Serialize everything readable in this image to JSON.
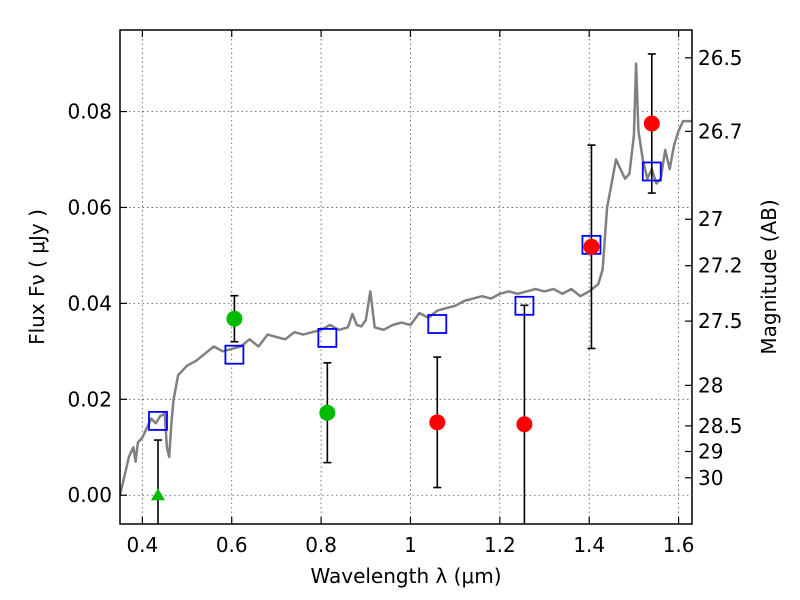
{
  "chart_data": {
    "type": "scatter",
    "xlabel": "Wavelength  λ (μm)",
    "ylabel": "Flux  Fν  ( μJy )",
    "y2label": "Magnitude (AB)",
    "xlim": [
      0.35,
      1.63
    ],
    "ylim": [
      -0.006,
      0.097
    ],
    "grid": true,
    "x_ticks": [
      0.4,
      0.6,
      0.8,
      1.0,
      1.2,
      1.4,
      1.6
    ],
    "x_tick_labels": [
      "0.4",
      "0.6",
      "0.8",
      "1",
      "1.2",
      "1.4",
      "1.6"
    ],
    "y_ticks": [
      0.0,
      0.02,
      0.04,
      0.06,
      0.08
    ],
    "y_tick_labels": [
      "0.00",
      "0.02",
      "0.04",
      "0.06",
      "0.08"
    ],
    "y2_ticks": [
      {
        "mag": 26.5,
        "label": "26.5"
      },
      {
        "mag": 26.7,
        "label": "26.7"
      },
      {
        "mag": 27.0,
        "label": "27"
      },
      {
        "mag": 27.2,
        "label": "27.2"
      },
      {
        "mag": 27.5,
        "label": "27.5"
      },
      {
        "mag": 28.0,
        "label": "28"
      },
      {
        "mag": 28.5,
        "label": "28.5"
      },
      {
        "mag": 29.0,
        "label": "29"
      },
      {
        "mag": 30.0,
        "label": "30"
      }
    ],
    "colors": {
      "sed": "#808080",
      "model": "#0000ff",
      "detection": "#ff0000",
      "weak": "#00bb00",
      "errorbar": "#000000"
    },
    "observed": [
      {
        "x": 0.435,
        "y": 0.0,
        "err": 0.0115,
        "marker": "triangle",
        "color": "green"
      },
      {
        "x": 0.606,
        "y": 0.0368,
        "err": 0.0048,
        "marker": "circle",
        "color": "green"
      },
      {
        "x": 0.814,
        "y": 0.0172,
        "err": 0.0104,
        "marker": "circle",
        "color": "green"
      },
      {
        "x": 1.06,
        "y": 0.0152,
        "err": 0.0136,
        "marker": "circle",
        "color": "red"
      },
      {
        "x": 1.255,
        "y": 0.0148,
        "err": 0.0248,
        "marker": "circle",
        "color": "red"
      },
      {
        "x": 1.405,
        "y": 0.0518,
        "err": 0.0212,
        "marker": "circle",
        "color": "red"
      },
      {
        "x": 1.54,
        "y": 0.0775,
        "err": 0.0145,
        "marker": "circle",
        "color": "red"
      }
    ],
    "model_points": [
      {
        "x": 0.435,
        "y": 0.0155
      },
      {
        "x": 0.606,
        "y": 0.0293
      },
      {
        "x": 0.814,
        "y": 0.0328
      },
      {
        "x": 1.06,
        "y": 0.0357
      },
      {
        "x": 1.255,
        "y": 0.0395
      },
      {
        "x": 1.405,
        "y": 0.0522
      },
      {
        "x": 1.54,
        "y": 0.0675
      }
    ],
    "sed_curve": [
      [
        0.35,
        0.0
      ],
      [
        0.36,
        0.004
      ],
      [
        0.37,
        0.008
      ],
      [
        0.38,
        0.01
      ],
      [
        0.385,
        0.007
      ],
      [
        0.39,
        0.011
      ],
      [
        0.4,
        0.012
      ],
      [
        0.41,
        0.014
      ],
      [
        0.42,
        0.016
      ],
      [
        0.43,
        0.015
      ],
      [
        0.44,
        0.0165
      ],
      [
        0.45,
        0.017
      ],
      [
        0.455,
        0.01
      ],
      [
        0.46,
        0.008
      ],
      [
        0.465,
        0.015
      ],
      [
        0.47,
        0.02
      ],
      [
        0.48,
        0.025
      ],
      [
        0.5,
        0.027
      ],
      [
        0.52,
        0.028
      ],
      [
        0.54,
        0.0295
      ],
      [
        0.56,
        0.031
      ],
      [
        0.58,
        0.03
      ],
      [
        0.6,
        0.0305
      ],
      [
        0.62,
        0.031
      ],
      [
        0.64,
        0.0325
      ],
      [
        0.66,
        0.031
      ],
      [
        0.68,
        0.0335
      ],
      [
        0.7,
        0.033
      ],
      [
        0.72,
        0.0325
      ],
      [
        0.74,
        0.034
      ],
      [
        0.76,
        0.0335
      ],
      [
        0.78,
        0.034
      ],
      [
        0.8,
        0.0345
      ],
      [
        0.82,
        0.0355
      ],
      [
        0.84,
        0.0345
      ],
      [
        0.86,
        0.035
      ],
      [
        0.87,
        0.0378
      ],
      [
        0.88,
        0.0355
      ],
      [
        0.89,
        0.0352
      ],
      [
        0.9,
        0.0365
      ],
      [
        0.91,
        0.0425
      ],
      [
        0.92,
        0.035
      ],
      [
        0.94,
        0.0345
      ],
      [
        0.96,
        0.0355
      ],
      [
        0.98,
        0.036
      ],
      [
        1.0,
        0.0355
      ],
      [
        1.02,
        0.038
      ],
      [
        1.04,
        0.037
      ],
      [
        1.06,
        0.0385
      ],
      [
        1.08,
        0.039
      ],
      [
        1.1,
        0.0395
      ],
      [
        1.12,
        0.0405
      ],
      [
        1.14,
        0.041
      ],
      [
        1.16,
        0.0415
      ],
      [
        1.18,
        0.041
      ],
      [
        1.2,
        0.042
      ],
      [
        1.22,
        0.0425
      ],
      [
        1.24,
        0.042
      ],
      [
        1.26,
        0.0425
      ],
      [
        1.28,
        0.043
      ],
      [
        1.3,
        0.0425
      ],
      [
        1.32,
        0.043
      ],
      [
        1.34,
        0.042
      ],
      [
        1.36,
        0.043
      ],
      [
        1.38,
        0.0415
      ],
      [
        1.4,
        0.0425
      ],
      [
        1.42,
        0.044
      ],
      [
        1.43,
        0.047
      ],
      [
        1.44,
        0.06
      ],
      [
        1.45,
        0.065
      ],
      [
        1.46,
        0.07
      ],
      [
        1.47,
        0.068
      ],
      [
        1.48,
        0.066
      ],
      [
        1.49,
        0.067
      ],
      [
        1.5,
        0.075
      ],
      [
        1.505,
        0.09
      ],
      [
        1.51,
        0.076
      ],
      [
        1.52,
        0.07
      ],
      [
        1.53,
        0.066
      ],
      [
        1.54,
        0.068
      ],
      [
        1.55,
        0.065
      ],
      [
        1.56,
        0.066
      ],
      [
        1.57,
        0.072
      ],
      [
        1.58,
        0.068
      ],
      [
        1.59,
        0.073
      ],
      [
        1.6,
        0.076
      ],
      [
        1.61,
        0.078
      ],
      [
        1.62,
        0.078
      ],
      [
        1.63,
        0.078
      ]
    ]
  }
}
